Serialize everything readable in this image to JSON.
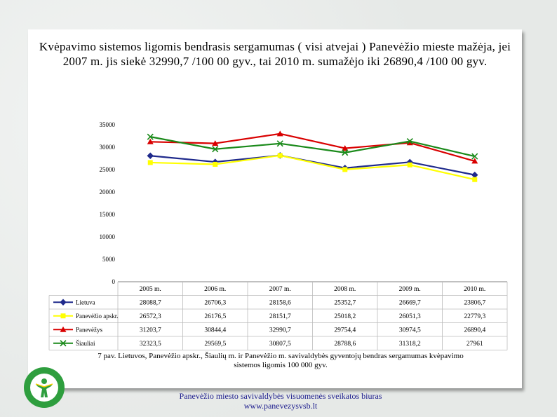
{
  "slide": {
    "title": "Kvėpavimo sistemos ligomis bendrasis sergamumas ( visi atvejai ) Panevėžio mieste mažėja, jei 2007 m. jis siekė 32990,7 /100 00 gyv., tai 2010 m. sumažėjo iki 26890,4 /100 00 gyv.",
    "caption": "7 pav. Lietuvos, Panevėžio apskr., Šiaulių m. ir Panevėžio m. savivaldybės gyventojų bendras sergamumas kvėpavimo sistemos ligomis 100 000 gyv.",
    "footer_line1": "Panevėžio miesto savivaldybės visuomenės sveikatos biuras",
    "footer_line2": "www.panevezysvsb.lt"
  },
  "colors": {
    "lietuva": "#1f2a8c",
    "apskr": "#ffff00",
    "panevezys": "#d90000",
    "siauliai": "#1a8a1a",
    "grid": "#bbbbbb",
    "logo_green": "#2e9e3e"
  },
  "chart_data": {
    "type": "line",
    "categories": [
      "2005 m.",
      "2006 m.",
      "2007 m.",
      "2008 m.",
      "2009 m.",
      "2010 m."
    ],
    "ylim": [
      0,
      35000
    ],
    "yticks": [
      0,
      5000,
      10000,
      15000,
      20000,
      25000,
      30000,
      35000
    ],
    "ytick_labels": [
      "0",
      "5000",
      "10000",
      "15000",
      "20000",
      "25000",
      "30000",
      "35000"
    ],
    "grid": false,
    "legend": "data-table-below",
    "series": [
      {
        "name": "Lietuva",
        "marker": "diamond",
        "color": "#1f2a8c",
        "values": [
          28088.7,
          26706.3,
          28158.6,
          25352.7,
          26669.7,
          23806.7
        ],
        "labels": [
          "28088,7",
          "26706,3",
          "28158,6",
          "25352,7",
          "26669,7",
          "23806,7"
        ]
      },
      {
        "name": "Panevėžio apskr.",
        "marker": "square",
        "color": "#ffff00",
        "values": [
          26572.3,
          26176.5,
          28151.7,
          25018.2,
          26051.3,
          22779.3
        ],
        "labels": [
          "26572,3",
          "26176,5",
          "28151,7",
          "25018,2",
          "26051,3",
          "22779,3"
        ]
      },
      {
        "name": "Panevėžys",
        "marker": "triangle",
        "color": "#d90000",
        "values": [
          31203.7,
          30844.4,
          32990.7,
          29754.4,
          30974.5,
          26890.4
        ],
        "labels": [
          "31203,7",
          "30844,4",
          "32990,7",
          "29754,4",
          "30974,5",
          "26890,4"
        ]
      },
      {
        "name": "Šiauliai",
        "marker": "x",
        "color": "#1a8a1a",
        "values": [
          32323.5,
          29569.5,
          30807.5,
          28788.6,
          31318.2,
          27961
        ],
        "labels": [
          "32323,5",
          "29569,5",
          "30807,5",
          "28788,6",
          "31318,2",
          "27961"
        ]
      }
    ]
  }
}
